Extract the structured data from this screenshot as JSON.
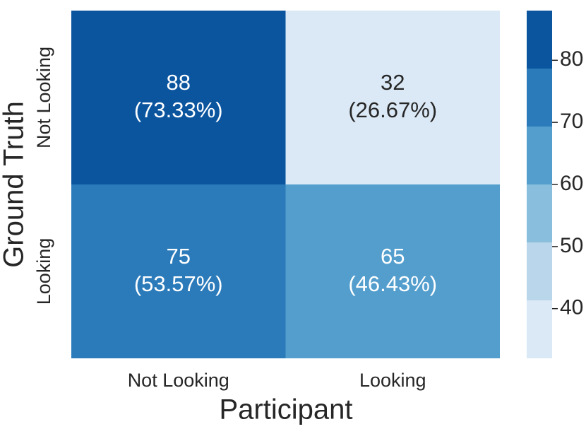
{
  "chart_data": {
    "type": "heatmap",
    "xlabel": "Participant",
    "ylabel": "Ground Truth",
    "x_categories": [
      "Not Looking",
      "Looking"
    ],
    "y_categories": [
      "Not Looking",
      "Looking"
    ],
    "values": [
      [
        88,
        32
      ],
      [
        75,
        65
      ]
    ],
    "percent_labels": [
      [
        "(73.33%)",
        "(26.67%)"
      ],
      [
        "(53.57%)",
        "(46.43%)"
      ]
    ],
    "colors": [
      "#dbe9f6",
      "#bad6eb",
      "#89bedc",
      "#539ecd",
      "#2b7bba",
      "#0b559f"
    ],
    "clim": [
      32,
      88
    ],
    "cticks": [
      40,
      50,
      60,
      70,
      80
    ]
  }
}
